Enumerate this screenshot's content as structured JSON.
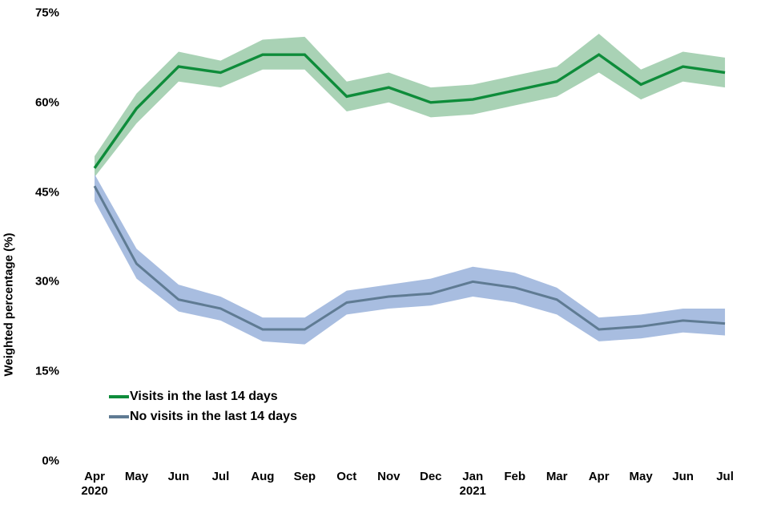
{
  "chart_data": {
    "type": "line",
    "title": "",
    "xlabel": "",
    "ylabel": "Weighted percentage (%)",
    "ylim": [
      0,
      75
    ],
    "grid": false,
    "frame": false,
    "legend_position": "inside-bottom-left",
    "yticks": [
      {
        "v": 0,
        "label": "0%"
      },
      {
        "v": 15,
        "label": "15%"
      },
      {
        "v": 30,
        "label": "30%"
      },
      {
        "v": 45,
        "label": "45%"
      },
      {
        "v": 60,
        "label": "60%"
      },
      {
        "v": 75,
        "label": "75%"
      }
    ],
    "x_ticks": [
      {
        "label": "Apr",
        "sublabel": "2020"
      },
      {
        "label": "May"
      },
      {
        "label": "Jun"
      },
      {
        "label": "Jul"
      },
      {
        "label": "Aug"
      },
      {
        "label": "Sep"
      },
      {
        "label": "Oct"
      },
      {
        "label": "Nov"
      },
      {
        "label": "Dec"
      },
      {
        "label": "Jan",
        "sublabel": "2021"
      },
      {
        "label": "Feb"
      },
      {
        "label": "Mar"
      },
      {
        "label": "Apr"
      },
      {
        "label": "May"
      },
      {
        "label": "Jun"
      },
      {
        "label": "Jul"
      }
    ],
    "series": [
      {
        "name": "Visits in the last 14 days",
        "color": "#0e8c3a",
        "band_color": "#a9d2b5",
        "values": [
          49,
          59,
          66,
          65,
          68,
          68,
          61,
          62.5,
          60,
          60.5,
          62,
          63.5,
          68,
          63,
          66,
          65
        ],
        "ci_low": [
          47.5,
          56.5,
          63.5,
          62.5,
          65.5,
          65.5,
          58.5,
          60,
          57.5,
          58,
          59.5,
          61,
          65,
          60.5,
          63.5,
          62.5
        ],
        "ci_high": [
          51,
          61.5,
          68.5,
          67,
          70.5,
          71,
          63.5,
          65,
          62.5,
          63,
          64.5,
          66,
          71.5,
          65.5,
          68.5,
          67.5
        ]
      },
      {
        "name": "No visits in the last 14 days",
        "color": "#5f7b93",
        "band_color": "#a8bde0",
        "values": [
          46,
          33,
          27,
          25.5,
          22,
          22,
          26.5,
          27.5,
          28,
          30,
          29,
          27,
          22,
          22.5,
          23.5,
          23
        ],
        "ci_low": [
          43.5,
          30.5,
          25,
          23.5,
          20,
          19.5,
          24.5,
          25.5,
          26,
          27.5,
          26.5,
          24.5,
          20,
          20.5,
          21.5,
          21
        ],
        "ci_high": [
          48,
          35.5,
          29.5,
          27.5,
          24,
          24,
          28.5,
          29.5,
          30.5,
          32.5,
          31.5,
          29,
          24,
          24.5,
          25.5,
          25.5
        ]
      }
    ]
  }
}
